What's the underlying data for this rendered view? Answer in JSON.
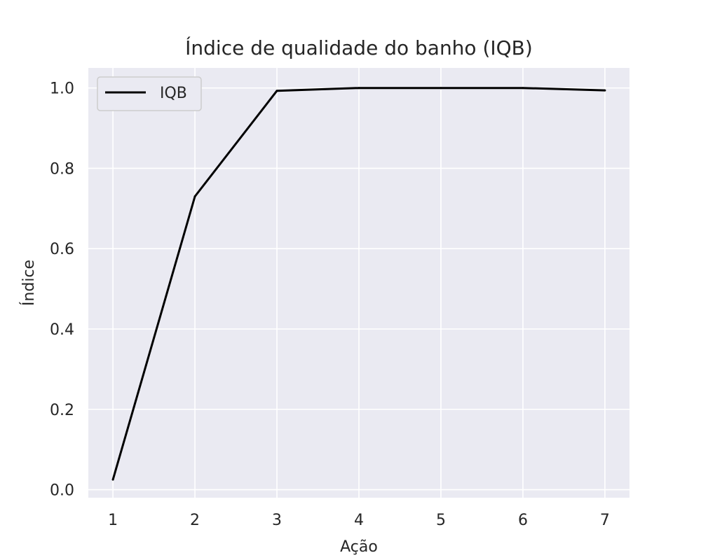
{
  "chart_data": {
    "type": "line",
    "title": "Índice de qualidade do banho (IQB)",
    "xlabel": "Ação",
    "ylabel": "Índice",
    "x": [
      1,
      2,
      3,
      4,
      5,
      6,
      7
    ],
    "xticks": [
      "1",
      "2",
      "3",
      "4",
      "5",
      "6",
      "7"
    ],
    "yticks": [
      "0.0",
      "0.2",
      "0.4",
      "0.6",
      "0.8",
      "1.0"
    ],
    "ylim": [
      -0.02,
      1.05
    ],
    "xlim": [
      0.7,
      7.3
    ],
    "grid": true,
    "legend_position": "top-left",
    "series": [
      {
        "name": "IQB",
        "color": "#000000",
        "values": [
          0.025,
          0.73,
          0.993,
          1.0,
          1.0,
          1.0,
          0.994
        ]
      }
    ],
    "colors": {
      "plot_background": "#EAEAF2",
      "grid": "#FFFFFF",
      "text": "#262626"
    }
  }
}
